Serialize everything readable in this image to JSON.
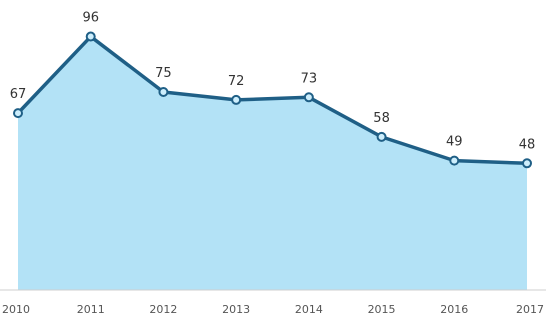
{
  "chart_data": {
    "type": "area",
    "categories": [
      "2010",
      "2011",
      "2012",
      "2013",
      "2014",
      "2015",
      "2016",
      "2017"
    ],
    "values": [
      67,
      96,
      75,
      72,
      73,
      58,
      49,
      48
    ],
    "data_labels": [
      "67",
      "96",
      "75",
      "72",
      "73",
      "58",
      "49",
      "48"
    ],
    "title": "",
    "xlabel": "",
    "ylabel": "",
    "ylim": [
      0,
      100
    ],
    "grid": false,
    "legend": "none",
    "colors": {
      "area_fill": "#b3e2f6",
      "line": "#1f5f86",
      "marker_fill": "#cdeefc",
      "label_text": "#333333",
      "tick_text": "#555555",
      "baseline": "#cfcfcf"
    }
  }
}
